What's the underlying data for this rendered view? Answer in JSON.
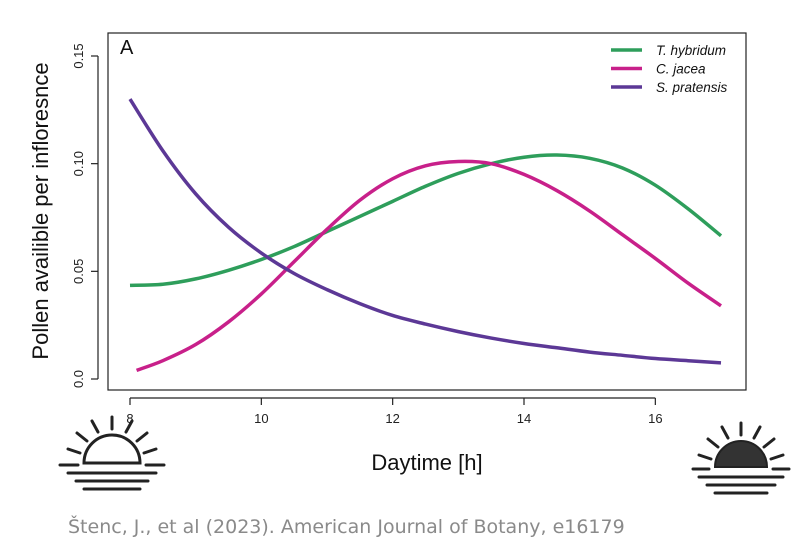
{
  "chart_data": {
    "type": "line",
    "panel_label": "A",
    "xlabel": "Daytime [h]",
    "ylabel": "Pollen availible per infloresnce",
    "xlim": [
      8,
      17
    ],
    "ylim": [
      0,
      0.16
    ],
    "xticks": [
      "8",
      "10",
      "12",
      "14",
      "16"
    ],
    "yticks": [
      "0.0",
      "0.05",
      "0.10",
      "0.15"
    ],
    "legend_position": "top-right",
    "series": [
      {
        "name": "T. hybridum",
        "color": "#2e9e5b",
        "x": [
          8,
          8.5,
          9,
          9.5,
          10,
          10.5,
          11,
          11.5,
          12,
          12.5,
          13,
          13.5,
          14,
          14.5,
          15,
          15.5,
          16,
          16.5,
          17
        ],
        "y": [
          0.0435,
          0.044,
          0.0465,
          0.0505,
          0.0555,
          0.0615,
          0.0685,
          0.0755,
          0.0825,
          0.0895,
          0.0955,
          0.1,
          0.103,
          0.104,
          0.1025,
          0.098,
          0.09,
          0.079,
          0.0665
        ]
      },
      {
        "name": "C. jacea",
        "color": "#c8208a",
        "x": [
          8.1,
          8.5,
          9,
          9.5,
          10,
          10.5,
          11,
          11.5,
          12,
          12.5,
          13,
          13.5,
          14,
          14.5,
          15,
          15.5,
          16,
          16.5,
          17
        ],
        "y": [
          0.004,
          0.0085,
          0.016,
          0.0265,
          0.0395,
          0.0545,
          0.0695,
          0.083,
          0.093,
          0.099,
          0.101,
          0.1,
          0.095,
          0.0875,
          0.078,
          0.067,
          0.056,
          0.0445,
          0.034
        ]
      },
      {
        "name": "S. pratensis",
        "color": "#5c3896",
        "x": [
          8,
          8.5,
          9,
          9.5,
          10,
          10.5,
          11,
          11.5,
          12,
          12.5,
          13,
          13.5,
          14,
          14.5,
          15,
          15.5,
          16,
          16.5,
          17
        ],
        "y": [
          0.13,
          0.106,
          0.086,
          0.0705,
          0.0585,
          0.049,
          0.0415,
          0.035,
          0.0295,
          0.0255,
          0.022,
          0.019,
          0.0165,
          0.0145,
          0.0125,
          0.011,
          0.0095,
          0.0085,
          0.0075
        ]
      }
    ]
  },
  "icons": {
    "left": "sunrise-icon",
    "right": "sunset-icon"
  },
  "citation": "Štenc, J., et al (2023). American Journal of Botany, e16179"
}
